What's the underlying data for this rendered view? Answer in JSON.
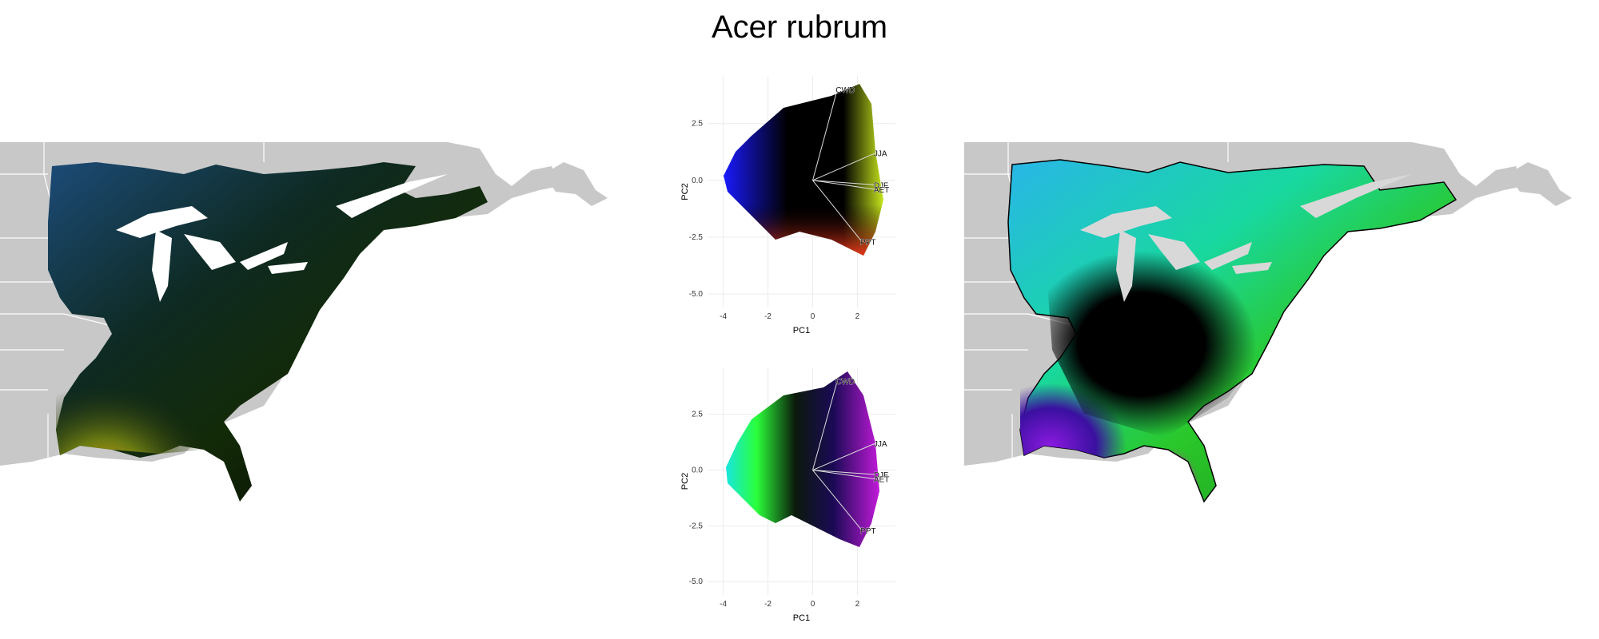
{
  "title": "Acer rubrum",
  "pca_plots": [
    {
      "xlabel": "PC1",
      "ylabel": "PC2",
      "x_ticks": [
        "-4",
        "-2",
        "0",
        "2"
      ],
      "y_ticks": [
        "2.5",
        "0.0",
        "-2.5",
        "-5.0"
      ],
      "vectors": [
        {
          "label": "CWD",
          "x": 1.1,
          "y": 4.0
        },
        {
          "label": "JJA",
          "x": 2.8,
          "y": 1.2
        },
        {
          "label": "DJF",
          "x": 2.8,
          "y": -0.2
        },
        {
          "label": "AET",
          "x": 2.8,
          "y": -0.4
        },
        {
          "label": "PPT",
          "x": 2.2,
          "y": -2.7
        }
      ]
    },
    {
      "xlabel": "PC1",
      "ylabel": "PC2",
      "x_ticks": [
        "-4",
        "-2",
        "0",
        "2"
      ],
      "y_ticks": [
        "2.5",
        "0.0",
        "-2.5",
        "-5.0"
      ],
      "vectors": [
        {
          "label": "CWD",
          "x": 1.1,
          "y": 4.0
        },
        {
          "label": "JJA",
          "x": 2.8,
          "y": 1.2
        },
        {
          "label": "DJF",
          "x": 2.8,
          "y": -0.2
        },
        {
          "label": "AET",
          "x": 2.8,
          "y": -0.4
        },
        {
          "label": "PPT",
          "x": 2.2,
          "y": -2.7
        }
      ]
    }
  ],
  "colors": {
    "land_background": "#c8c8c8",
    "state_lines": "#ffffff",
    "grid": "#ececec"
  }
}
